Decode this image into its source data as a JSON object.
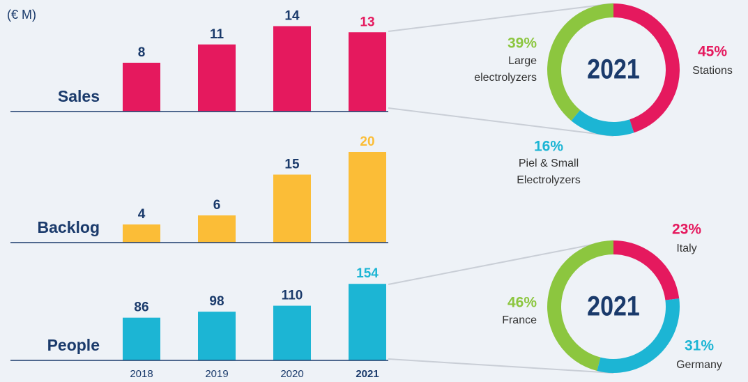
{
  "chart_data": [
    {
      "type": "bar",
      "subtitle": "(€ M)",
      "label": "Sales",
      "values": [
        8,
        11,
        14,
        13
      ],
      "color": "#e5195e",
      "ylim": [
        0,
        16
      ]
    },
    {
      "type": "bar",
      "label": "Backlog",
      "values": [
        4,
        6,
        15,
        20
      ],
      "color": "#fbbd37",
      "ylim": [
        0,
        24
      ]
    },
    {
      "type": "bar",
      "label": "People",
      "categories": [
        "2018",
        "2019",
        "2020",
        "2021"
      ],
      "values": [
        86,
        98,
        110,
        154
      ],
      "color": "#1cb5d4",
      "ylim": [
        0,
        216
      ]
    },
    {
      "type": "pie",
      "center_label": "2021",
      "values": [
        45,
        16,
        39
      ],
      "value_labels": [
        "45%",
        "16%",
        "39%"
      ],
      "labels": [
        [
          "Stations"
        ],
        [
          "Piel & Small",
          "Electrolyzers"
        ],
        [
          "Large",
          "electrolyzers"
        ]
      ],
      "colors": [
        "#e5195e",
        "#1cb5d4",
        "#8cc63f"
      ]
    },
    {
      "type": "pie",
      "center_label": "2021",
      "values": [
        23,
        31,
        46
      ],
      "value_labels": [
        "23%",
        "31%",
        "46%"
      ],
      "labels": [
        [
          "Italy"
        ],
        [
          "Germany"
        ],
        [
          "France"
        ]
      ],
      "colors": [
        "#e5195e",
        "#1cb5d4",
        "#8cc63f"
      ]
    }
  ]
}
